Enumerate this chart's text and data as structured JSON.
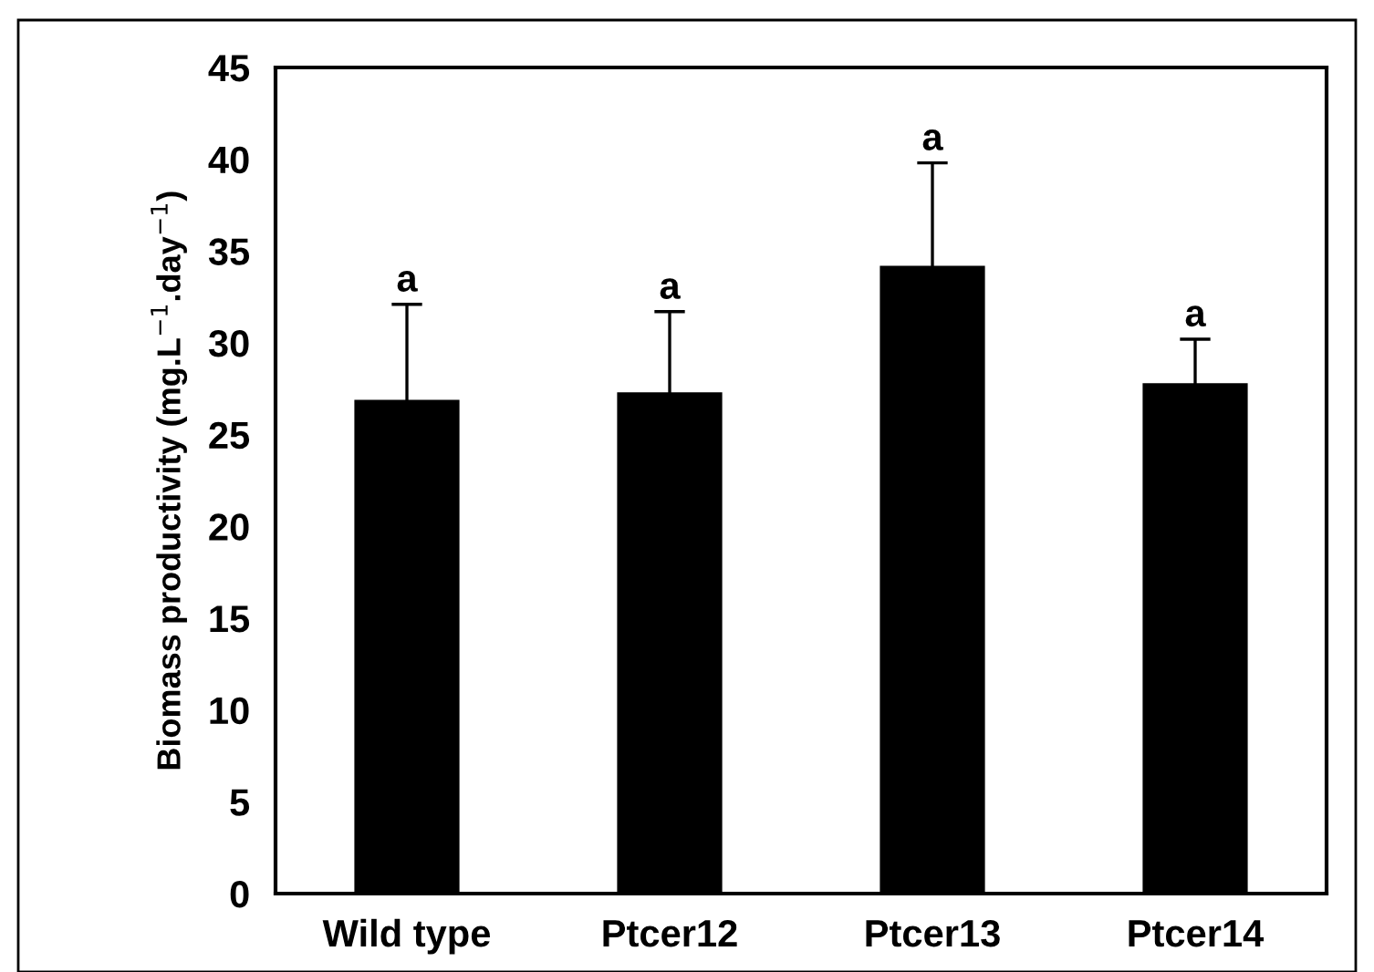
{
  "chart_data": {
    "type": "bar",
    "ylabel": "Biomass productivity (mg.L$^{−1}$.day$^{−1}$)",
    "categories": [
      "Wild type",
      "Ptcer12",
      "Ptcer13",
      "Ptcer14"
    ],
    "values": [
      26.9,
      27.3,
      34.2,
      27.8
    ],
    "errors": [
      5.2,
      4.4,
      5.6,
      2.4
    ],
    "color": "#000000",
    "ylim": [
      0,
      45
    ],
    "yticks": [
      0,
      5,
      10,
      15,
      20,
      25,
      30,
      35,
      40,
      45
    ],
    "grid": false,
    "annotations": [
      "a",
      "a",
      "a",
      "a"
    ]
  }
}
